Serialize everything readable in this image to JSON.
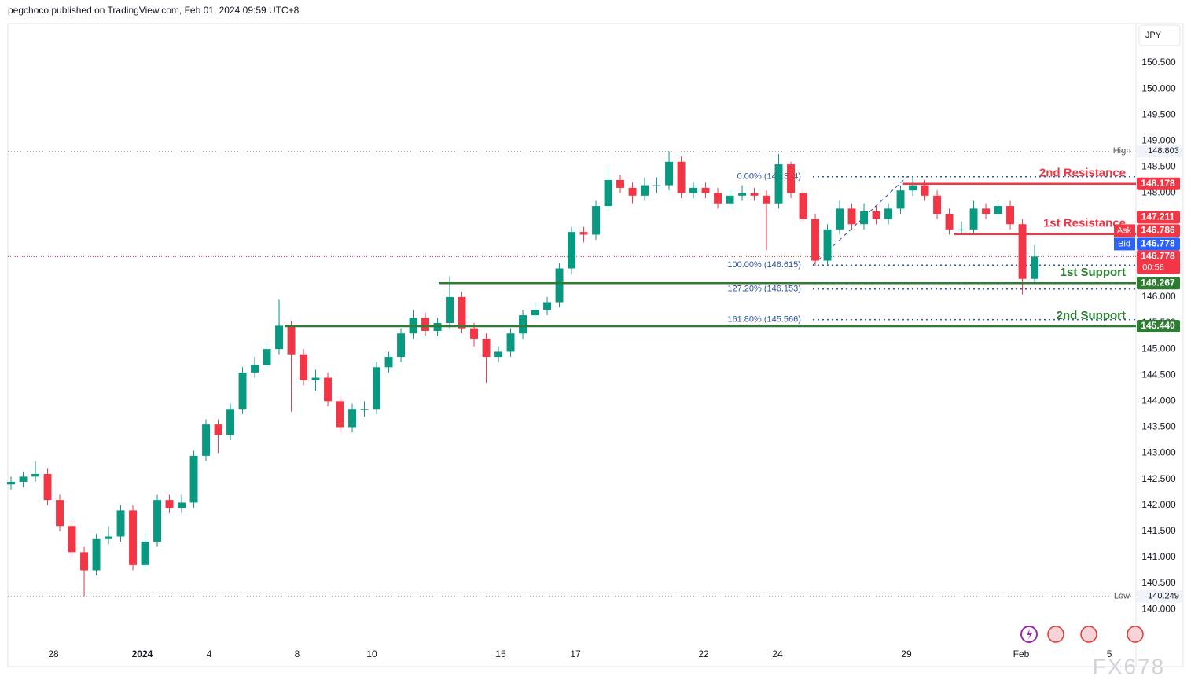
{
  "chart_data": {
    "type": "candlestick",
    "header": "pegchoco published on TradingView.com, Feb 01, 2024 09:59 UTC+8",
    "currency": "JPY",
    "watermark": "FX678",
    "up_color": "#089981",
    "down_color": "#f23645",
    "grid": false,
    "ylim": [
      138.9,
      151.255
    ],
    "yticks": [
      {
        "value": 140.0,
        "label": "140.000"
      },
      {
        "value": 140.5,
        "label": "140.500"
      },
      {
        "value": 141.0,
        "label": "141.000"
      },
      {
        "value": 141.5,
        "label": "141.500"
      },
      {
        "value": 142.0,
        "label": "142.000"
      },
      {
        "value": 142.5,
        "label": "142.500"
      },
      {
        "value": 143.0,
        "label": "143.000"
      },
      {
        "value": 143.5,
        "label": "143.500"
      },
      {
        "value": 144.0,
        "label": "144.000"
      },
      {
        "value": 144.5,
        "label": "144.500"
      },
      {
        "value": 145.0,
        "label": "145.000"
      },
      {
        "value": 145.5,
        "label": "145.500"
      },
      {
        "value": 146.0,
        "label": "146.000"
      },
      {
        "value": 146.5,
        "label": "146.500"
      },
      {
        "value": 147.0,
        "label": "147.000"
      },
      {
        "value": 147.5,
        "label": "147.500"
      },
      {
        "value": 148.0,
        "label": "148.000"
      },
      {
        "value": 148.5,
        "label": "148.500"
      },
      {
        "value": 149.0,
        "label": "149.000"
      },
      {
        "value": 149.5,
        "label": "149.500"
      },
      {
        "value": 150.0,
        "label": "150.000"
      },
      {
        "value": 150.5,
        "label": "150.500"
      }
    ],
    "xlim": [
      -0.26,
      92.32
    ],
    "xticks": [
      {
        "value": 3.48,
        "label": "28"
      },
      {
        "value": 10.77,
        "label": "2024"
      },
      {
        "value": 16.26,
        "label": "4"
      },
      {
        "value": 23.48,
        "label": "8"
      },
      {
        "value": 29.61,
        "label": "10"
      },
      {
        "value": 40.19,
        "label": "15"
      },
      {
        "value": 46.32,
        "label": "17"
      },
      {
        "value": 56.84,
        "label": "22"
      },
      {
        "value": 62.9,
        "label": "24"
      },
      {
        "value": 73.48,
        "label": "29"
      },
      {
        "value": 82.9,
        "label": "Feb"
      },
      {
        "value": 90.13,
        "label": "5"
      }
    ],
    "series": [
      {
        "open": [
          142.4,
          142.45,
          142.55,
          142.6,
          142.1,
          141.6,
          141.1,
          140.75,
          141.35,
          141.4,
          141.9,
          140.85,
          141.3,
          142.1,
          141.95,
          142.05,
          142.95,
          143.55,
          143.35,
          143.85,
          144.55,
          144.7,
          145.0,
          145.45,
          144.9,
          144.4,
          144.45,
          144.0,
          143.5,
          143.85,
          143.85,
          144.65,
          144.85,
          145.3,
          145.6,
          145.35,
          145.5,
          146.0,
          145.4,
          145.2,
          144.85,
          144.95,
          145.3,
          145.65,
          145.75,
          145.9,
          146.55,
          147.25,
          147.2,
          147.75,
          148.25,
          148.1,
          147.95,
          148.15,
          148.15,
          148.6,
          148.0,
          148.1,
          148.0,
          147.8,
          147.95,
          148.0,
          147.95,
          147.8,
          148.55,
          148.0,
          147.5,
          146.7,
          147.3,
          147.7,
          147.4,
          147.65,
          147.5,
          147.7,
          148.05,
          148.15,
          147.95,
          147.6,
          147.3,
          147.3,
          147.7,
          147.6,
          147.75,
          147.4,
          146.35
        ],
        "high": [
          142.55,
          142.65,
          142.85,
          142.7,
          142.2,
          141.7,
          141.2,
          141.45,
          141.6,
          142.0,
          142.0,
          141.45,
          142.2,
          142.2,
          142.2,
          143.05,
          143.65,
          143.65,
          143.95,
          144.65,
          144.85,
          145.1,
          145.95,
          145.55,
          145.0,
          144.6,
          144.55,
          144.1,
          143.95,
          144.0,
          144.75,
          144.95,
          145.4,
          145.75,
          145.7,
          145.6,
          146.4,
          146.1,
          145.5,
          145.3,
          145.05,
          145.4,
          145.75,
          145.9,
          146.0,
          146.65,
          147.35,
          147.35,
          147.85,
          148.5,
          148.35,
          148.2,
          148.3,
          148.3,
          148.8,
          148.7,
          148.2,
          148.2,
          148.1,
          148.05,
          148.15,
          148.1,
          148.05,
          148.75,
          148.6,
          148.1,
          147.6,
          147.4,
          147.85,
          147.8,
          147.8,
          147.75,
          147.8,
          148.15,
          148.3,
          148.25,
          148.05,
          147.7,
          147.45,
          147.85,
          147.8,
          147.85,
          147.85,
          147.5,
          147.0
        ],
        "low": [
          142.3,
          142.35,
          142.45,
          142.0,
          141.5,
          141.0,
          140.25,
          140.65,
          141.25,
          141.3,
          140.75,
          140.75,
          141.2,
          141.85,
          141.85,
          141.95,
          142.85,
          143.0,
          143.25,
          143.75,
          144.45,
          144.6,
          144.9,
          143.8,
          144.3,
          144.2,
          143.9,
          143.4,
          143.4,
          143.7,
          143.75,
          144.55,
          144.75,
          145.2,
          145.25,
          145.25,
          145.4,
          145.3,
          145.05,
          144.35,
          144.75,
          144.85,
          145.2,
          145.55,
          145.65,
          145.8,
          146.45,
          147.05,
          147.1,
          147.65,
          148.0,
          147.8,
          147.85,
          148.0,
          148.05,
          147.9,
          147.9,
          147.9,
          147.7,
          147.7,
          147.85,
          147.85,
          146.9,
          147.7,
          147.9,
          147.4,
          146.6,
          146.6,
          147.2,
          147.3,
          147.3,
          147.4,
          147.4,
          147.6,
          147.95,
          147.85,
          147.5,
          147.2,
          147.2,
          147.2,
          147.5,
          147.5,
          147.3,
          146.05,
          146.25
        ],
        "close": [
          142.45,
          142.55,
          142.6,
          142.1,
          141.6,
          141.1,
          140.75,
          141.35,
          141.4,
          141.9,
          140.85,
          141.3,
          142.1,
          141.95,
          142.05,
          142.95,
          143.55,
          143.35,
          143.85,
          144.55,
          144.7,
          145.0,
          145.45,
          144.9,
          144.4,
          144.45,
          144.0,
          143.5,
          143.85,
          143.85,
          144.65,
          144.85,
          145.3,
          145.6,
          145.35,
          145.5,
          146.0,
          145.4,
          145.2,
          144.85,
          144.95,
          145.3,
          145.65,
          145.75,
          145.9,
          146.55,
          147.25,
          147.2,
          147.75,
          148.25,
          148.1,
          147.95,
          148.15,
          148.15,
          148.6,
          148.0,
          148.1,
          148.0,
          147.8,
          147.95,
          148.0,
          147.95,
          147.8,
          148.55,
          148.0,
          147.5,
          146.7,
          147.3,
          147.7,
          147.4,
          147.65,
          147.5,
          147.7,
          148.05,
          148.15,
          147.95,
          147.6,
          147.3,
          147.3,
          147.7,
          147.6,
          147.75,
          147.4,
          146.35,
          146.778
        ]
      }
    ],
    "levels": [
      {
        "name": "2nd Resistance",
        "value": 148.178,
        "color": "#f23645",
        "x_start": 73.2
      },
      {
        "name": "1st Resistance",
        "value": 147.211,
        "color": "#f23645",
        "x_start": 77.4
      },
      {
        "name": "1st Support",
        "value": 146.267,
        "color": "#2e7d32",
        "x_start": 35.1
      },
      {
        "name": "2nd Support",
        "value": 145.44,
        "value_label": "145.440",
        "color": "#2e7d32",
        "x_start": 22.45
      }
    ],
    "fib": {
      "color": "#2a4fa0",
      "x_start": 65.8,
      "levels": [
        {
          "label": "0.00% (148.314)",
          "value": 148.314
        },
        {
          "label": "100.00% (146.615)",
          "value": 146.615
        },
        {
          "label": "127.20% (146.153)",
          "value": 146.153
        },
        {
          "label": "161.80% (145.566)",
          "value": 145.566
        }
      ]
    },
    "extremes": {
      "high": {
        "label": "High",
        "value": 148.803
      },
      "low": {
        "label": "Low",
        "value": 140.249
      }
    },
    "quotes": {
      "ask": {
        "label": "Ask",
        "value": 146.786
      },
      "bid": {
        "label": "Bid",
        "value": 146.778
      },
      "countdown": "00:56"
    }
  }
}
